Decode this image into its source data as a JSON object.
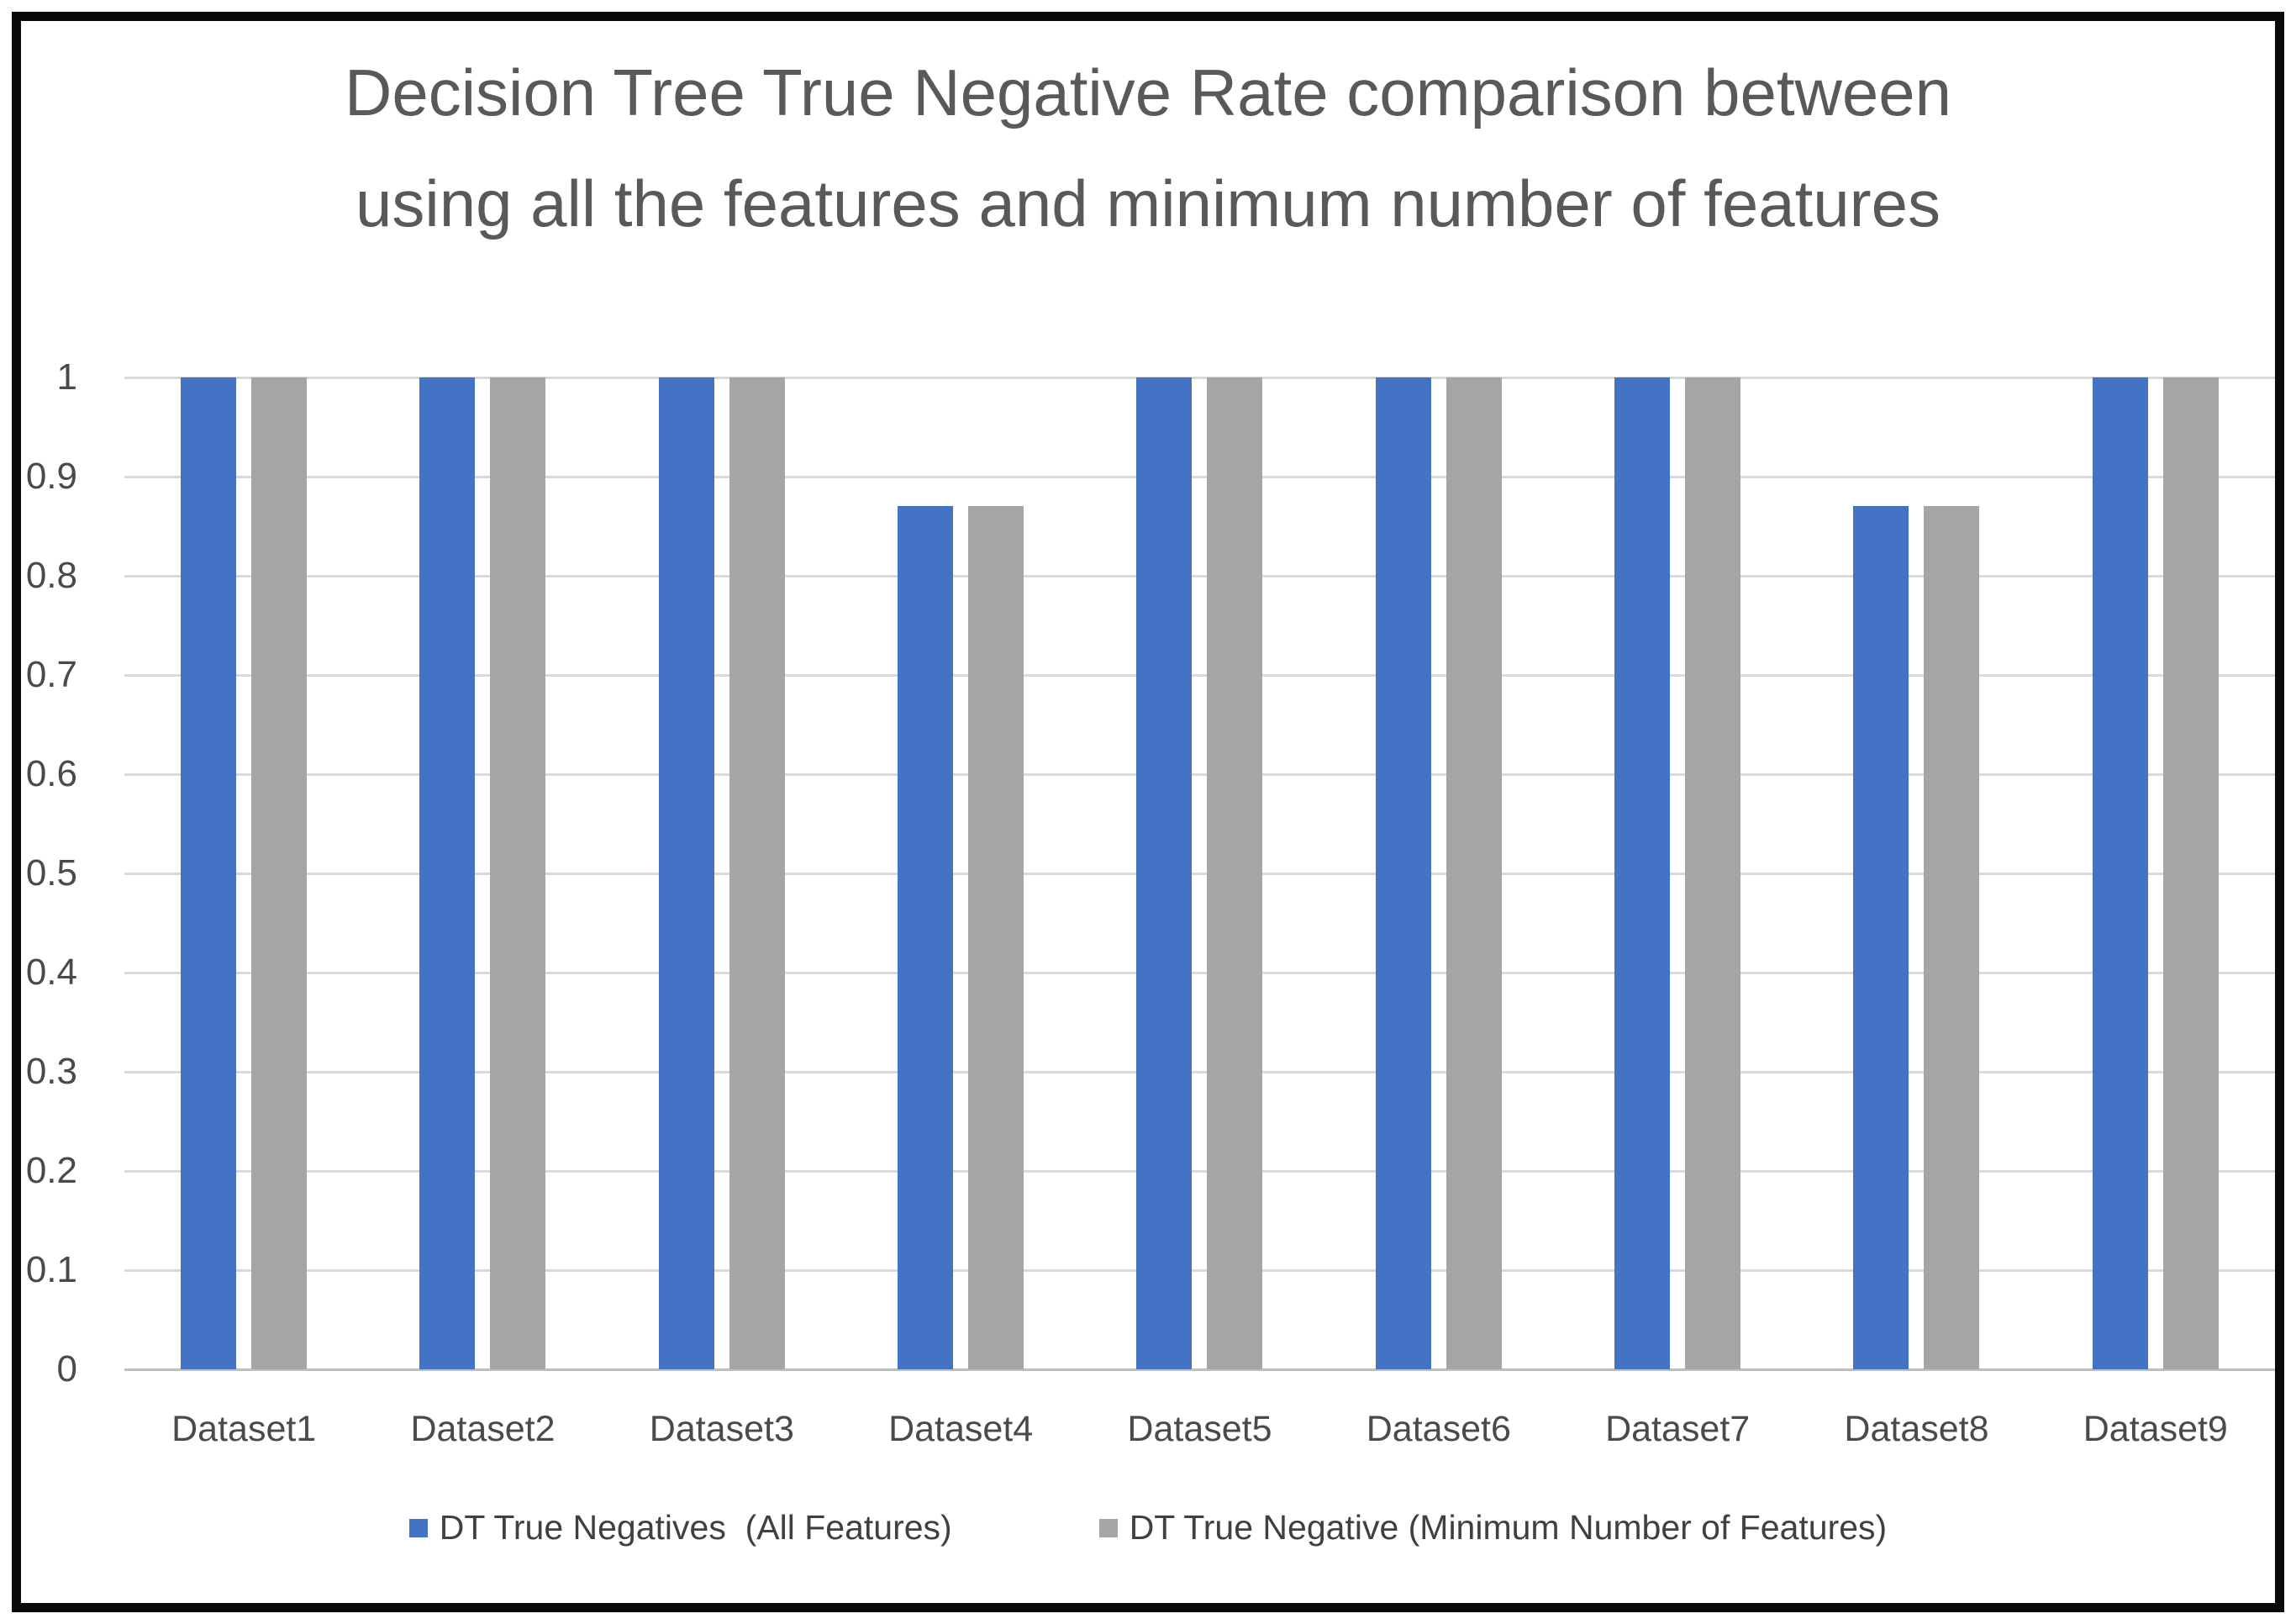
{
  "frame": {
    "border_color": "#0a0a0a"
  },
  "title": {
    "text": "Decision Tree True Negative Rate comparison between\nusing all the features and minimum number of features",
    "color": "#595959"
  },
  "chart_data": {
    "type": "bar",
    "title": "Decision Tree True Negative Rate comparison between using all the features and minimum number of features",
    "categories": [
      "Dataset1",
      "Dataset2",
      "Dataset3",
      "Dataset4",
      "Dataset5",
      "Dataset6",
      "Dataset7",
      "Dataset8",
      "Dataset9"
    ],
    "series": [
      {
        "name": "DT True Negatives  (All Features)",
        "color": "#4472C4",
        "values": [
          1,
          1,
          1,
          0.87,
          1,
          1,
          1,
          0.87,
          1
        ]
      },
      {
        "name": "DT True Negative (Minimum Number of Features)",
        "color": "#A5A5A5",
        "values": [
          1,
          1,
          1,
          0.87,
          1,
          1,
          1,
          0.87,
          1
        ]
      }
    ],
    "xlabel": "",
    "ylabel": "",
    "ylim": [
      0,
      1
    ],
    "ytick_labels_top_to_bottom": [
      "1",
      "0.9",
      "0.8",
      "0.7",
      "0.6",
      "0.5",
      "0.4",
      "0.3",
      "0.2",
      "0.1",
      "0"
    ],
    "grid": "horizontal",
    "gridline_color": "#D9D9D9",
    "baseline_color": "#BFBFBF",
    "axis_text_color": "#4a4a4a",
    "legend_position": "bottom",
    "legend_text_color": "#404040"
  }
}
